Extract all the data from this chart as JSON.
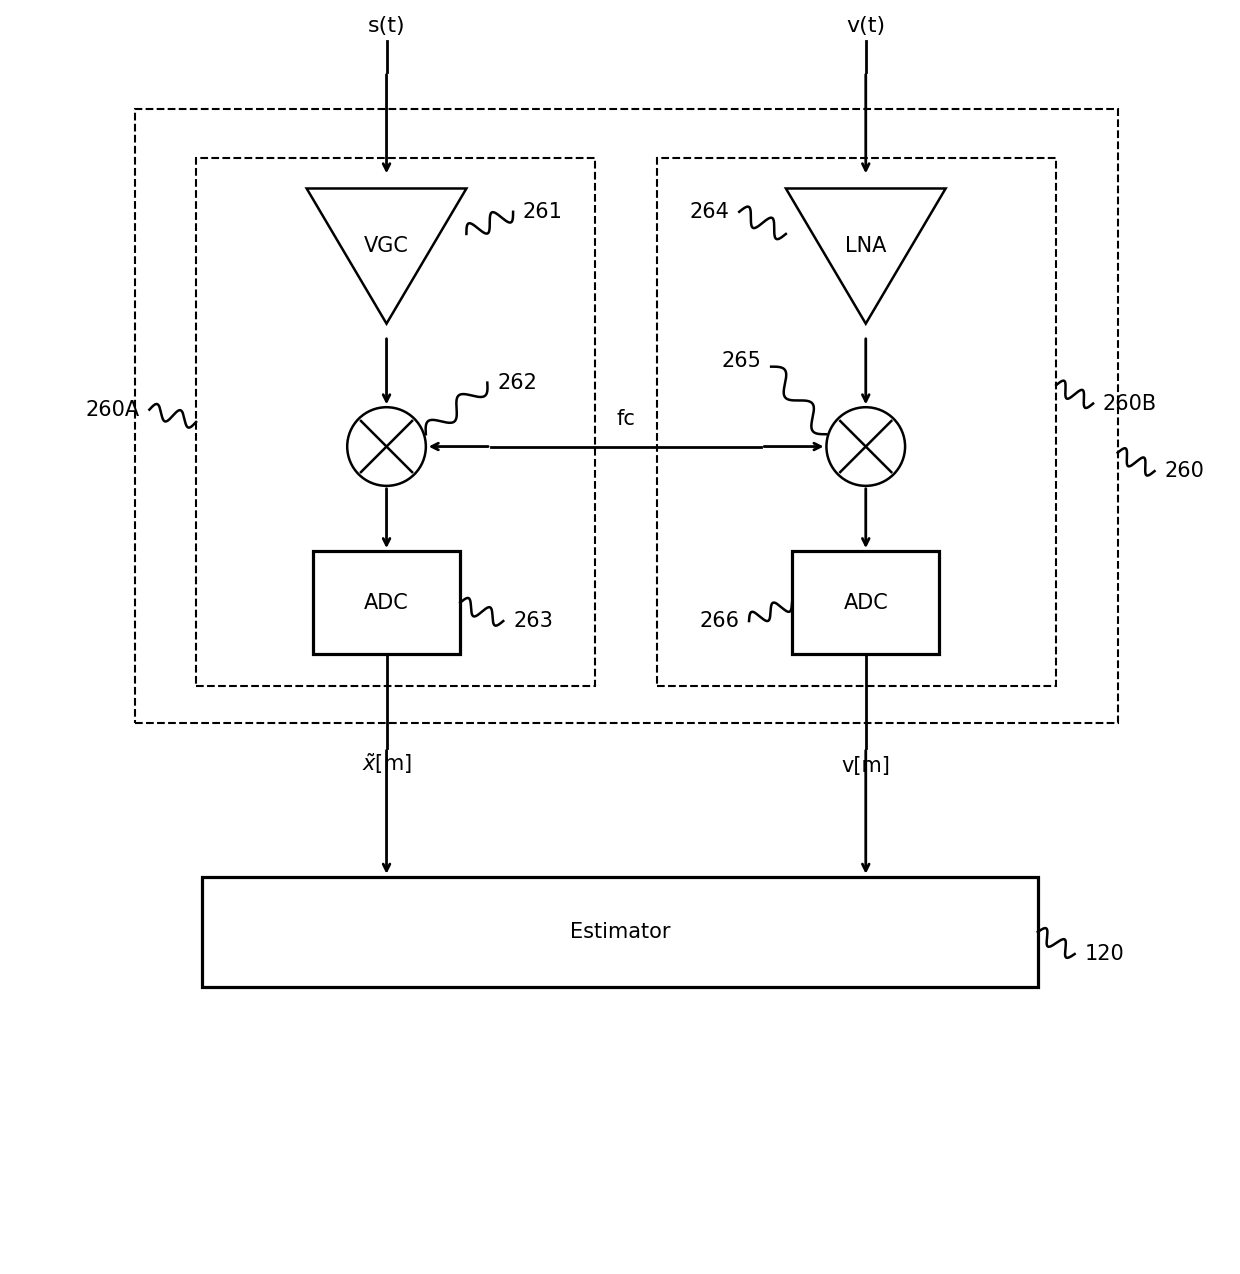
{
  "bg_color": "#ffffff",
  "line_color": "#000000",
  "fig_width": 12.4,
  "fig_height": 12.74,
  "labels": {
    "st": "s(t)",
    "vt": "v(t)",
    "vgc": "VGC",
    "lna": "LNA",
    "adc1": "ADC",
    "adc2": "ADC",
    "estimator": "Estimator",
    "fc": "fc",
    "ref261": "261",
    "ref262": "262",
    "ref263": "263",
    "ref264": "264",
    "ref265": "265",
    "ref266": "266",
    "ref120": "120",
    "ref260": "260",
    "ref260A": "260A",
    "ref260B": "260B",
    "xtilde": "$\\tilde{x}$[m]",
    "vm": "v[m]"
  }
}
